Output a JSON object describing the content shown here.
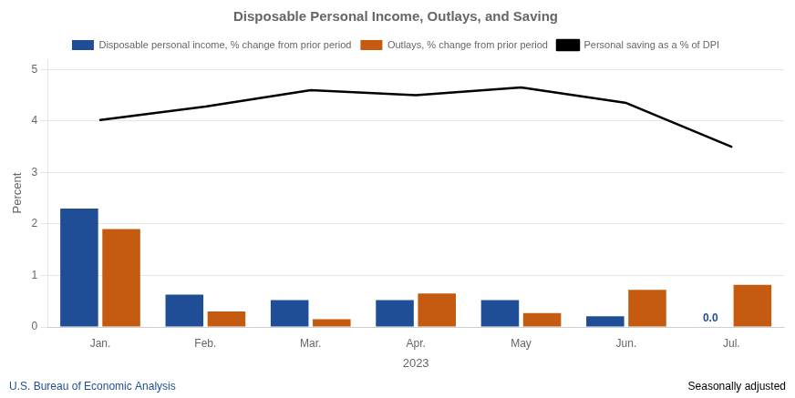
{
  "chart_data": {
    "type": "bar",
    "title": "Disposable Personal Income, Outlays, and Saving",
    "categories": [
      "Jan.",
      "Feb.",
      "Mar.",
      "Apr.",
      "May",
      "Jun.",
      "Jul."
    ],
    "x_label": "2023",
    "y_label": "Percent",
    "series": [
      {
        "name": "Disposable personal income, % change from prior period",
        "type": "bar",
        "color": "#1f4e96",
        "values": [
          2.3,
          0.63,
          0.52,
          0.52,
          0.52,
          0.21,
          0.0
        ]
      },
      {
        "name": "Outlays, % change from prior period",
        "type": "bar",
        "color": "#c55a11",
        "values": [
          1.9,
          0.3,
          0.15,
          0.65,
          0.27,
          0.72,
          0.82
        ]
      },
      {
        "name": "Personal saving as a % of DPI",
        "type": "line",
        "color": "#000000",
        "values": [
          4.02,
          4.28,
          4.6,
          4.5,
          4.65,
          4.35,
          3.5
        ]
      }
    ],
    "ylim": [
      0,
      5.2
    ],
    "yticks": [
      0,
      1,
      2,
      3,
      4,
      5
    ],
    "grid": true,
    "legend": "top",
    "annotations": [
      {
        "text": "0.0",
        "x": "Jul.",
        "y": 0.0,
        "series": "Disposable personal income, % change from prior period",
        "color": "#1f4e96"
      }
    ],
    "footer": [
      {
        "text": "U.S. Bureau of Economic Analysis",
        "color": "#1f4e96"
      },
      {
        "text": "Seasonally adjusted",
        "color": "#000000"
      }
    ]
  }
}
